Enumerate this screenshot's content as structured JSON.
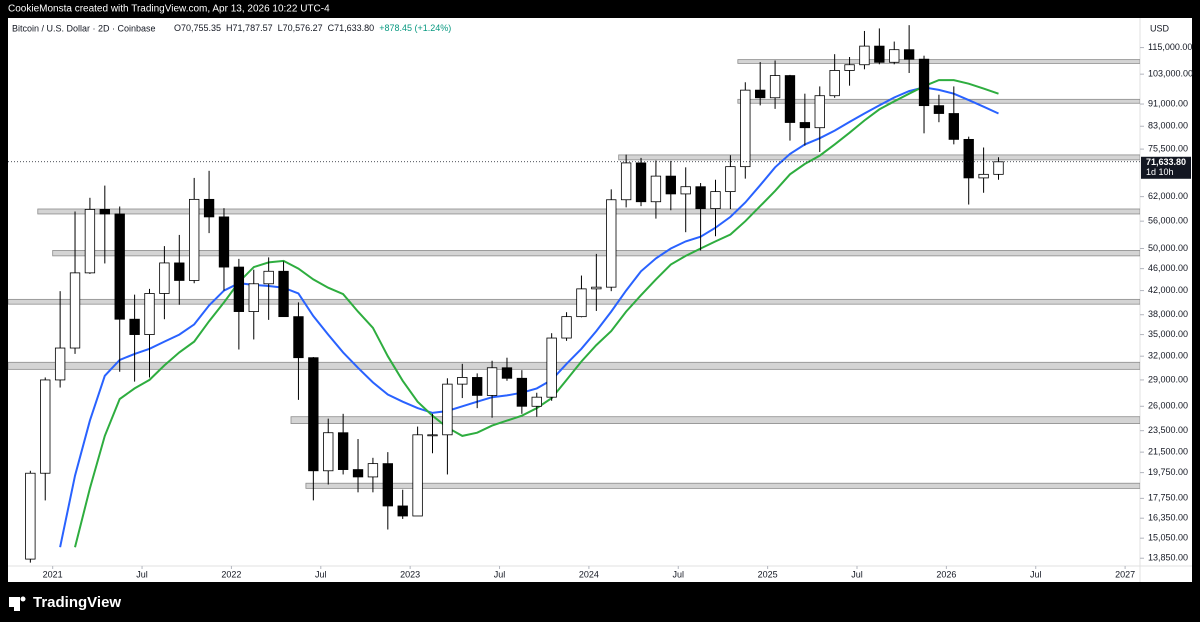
{
  "header": {
    "credit": "CookieMonsta created with TradingView.com, Apr 13, 2026 10:22 UTC-4",
    "symbol": "Bitcoin / U.S. Dollar · 2D · Coinbase",
    "ohlc": [
      "O70,755.35",
      "H71,787.57",
      "L70,576.27",
      "C71,633.80",
      "+878.45 (+1.24%)"
    ]
  },
  "footer": {
    "brand": "TradingView"
  },
  "chart_data": {
    "type": "candlestick",
    "currency": "USD",
    "log_scale": true,
    "up_color": "#ffffff",
    "down_color": "#000000",
    "wick_color": "#000000",
    "x": [
      "2020-11",
      "2020-12",
      "2021-01",
      "2021-02",
      "2021-03",
      "2021-04",
      "2021-05",
      "2021-06",
      "2021-07",
      "2021-08",
      "2021-09",
      "2021-10",
      "2021-11",
      "2021-12",
      "2022-01",
      "2022-02",
      "2022-03",
      "2022-04",
      "2022-05",
      "2022-06",
      "2022-07",
      "2022-08",
      "2022-09",
      "2022-10",
      "2022-11",
      "2022-12",
      "2023-01",
      "2023-02",
      "2023-03",
      "2023-04",
      "2023-05",
      "2023-06",
      "2023-07",
      "2023-08",
      "2023-09",
      "2023-10",
      "2023-11",
      "2023-12",
      "2024-01",
      "2024-02",
      "2024-03",
      "2024-04",
      "2024-05",
      "2024-06",
      "2024-07",
      "2024-08",
      "2024-09",
      "2024-10",
      "2024-11",
      "2024-12",
      "2025-01",
      "2025-02",
      "2025-03",
      "2025-04",
      "2025-05",
      "2025-06",
      "2025-07",
      "2025-08",
      "2025-09",
      "2025-10",
      "2025-11",
      "2025-12",
      "2026-01",
      "2026-02",
      "2026-03",
      "2026-04"
    ],
    "open": [
      13800,
      19700,
      29000,
      33100,
      45200,
      58800,
      57700,
      37300,
      35000,
      41500,
      47100,
      43800,
      61300,
      57000,
      46300,
      38500,
      43200,
      45500,
      37700,
      31800,
      19900,
      23300,
      20000,
      19400,
      20500,
      17200,
      16500,
      23100,
      23100,
      28500,
      29300,
      27200,
      30500,
      29200,
      26000,
      27000,
      34500,
      37700,
      42300,
      42600,
      61200,
      71300,
      60700,
      67500,
      62700,
      64600,
      59000,
      63300,
      70200,
      96400,
      93400,
      102400,
      84300,
      82500,
      94200,
      104600,
      107100,
      115700,
      108200,
      114000,
      109600,
      90400,
      87500,
      78600,
      67000,
      68000
    ],
    "high": [
      19900,
      29300,
      41900,
      58300,
      61700,
      64900,
      59500,
      41300,
      42300,
      50500,
      52900,
      67000,
      69000,
      59100,
      47900,
      45800,
      48200,
      47400,
      40000,
      31900,
      24700,
      25200,
      22700,
      21000,
      21500,
      18400,
      23900,
      25200,
      29200,
      31000,
      29800,
      31400,
      31800,
      30200,
      27500,
      35200,
      38400,
      44700,
      48900,
      63900,
      73800,
      72800,
      72000,
      71900,
      70000,
      65600,
      66500,
      73600,
      99600,
      108300,
      109000,
      102700,
      95000,
      97900,
      111900,
      110600,
      123200,
      124500,
      117900,
      126200,
      111200,
      94600,
      97900,
      79500,
      76000,
      73000
    ],
    "low": [
      13600,
      17600,
      28100,
      32300,
      45000,
      47000,
      30000,
      28800,
      29300,
      37300,
      39600,
      43300,
      53300,
      42000,
      32900,
      34300,
      37200,
      37700,
      26700,
      17600,
      18800,
      19600,
      18200,
      18200,
      15600,
      16300,
      16500,
      21400,
      19600,
      26900,
      25800,
      24800,
      28900,
      25200,
      24900,
      26600,
      34100,
      37600,
      38600,
      41900,
      59300,
      59600,
      56600,
      58600,
      53500,
      49600,
      52600,
      58900,
      66800,
      90500,
      89200,
      78200,
      76600,
      74600,
      93400,
      98200,
      105100,
      107300,
      107300,
      103500,
      80600,
      84400,
      77000,
      60000,
      63000,
      66500
    ],
    "close": [
      19700,
      29000,
      33100,
      45200,
      58800,
      57700,
      37300,
      35000,
      41500,
      47100,
      43800,
      61300,
      57000,
      46300,
      38500,
      43200,
      45500,
      37700,
      31800,
      19900,
      23300,
      20000,
      19400,
      20500,
      17200,
      16500,
      23100,
      23100,
      28500,
      29300,
      27200,
      30500,
      29200,
      26000,
      27000,
      34500,
      37700,
      42300,
      42600,
      61200,
      71300,
      60700,
      67500,
      62700,
      64600,
      59000,
      63300,
      70200,
      96400,
      93400,
      102400,
      84300,
      82500,
      94200,
      104600,
      107100,
      115700,
      108200,
      114000,
      109600,
      90400,
      87500,
      78600,
      67000,
      68000,
      71634
    ],
    "lines": [
      {
        "color": "#2962ff",
        "values": [
          null,
          null,
          14500,
          19500,
          24500,
          29500,
          31500,
          32300,
          33000,
          34000,
          35000,
          36500,
          39500,
          42000,
          43300,
          43000,
          42800,
          42500,
          41500,
          37800,
          35000,
          32500,
          30500,
          28700,
          27300,
          26500,
          25800,
          25300,
          25500,
          26000,
          26500,
          27000,
          27200,
          27500,
          28000,
          29000,
          31000,
          33000,
          35500,
          38500,
          42000,
          45500,
          48000,
          50000,
          51500,
          52500,
          54500,
          57000,
          60500,
          65000,
          70000,
          74000,
          77000,
          79000,
          81500,
          84500,
          87500,
          90500,
          93500,
          96000,
          97500,
          96500,
          95000,
          92500,
          90000,
          87500
        ]
      },
      {
        "color": "#2ead3f",
        "values": [
          null,
          null,
          null,
          14500,
          18500,
          23000,
          26800,
          28000,
          29000,
          30800,
          32500,
          34000,
          37000,
          40000,
          43500,
          46300,
          47200,
          47500,
          46000,
          44000,
          42500,
          41400,
          38500,
          36000,
          32000,
          28900,
          26500,
          25000,
          23800,
          23000,
          23300,
          24000,
          24500,
          25000,
          25800,
          26900,
          29000,
          31300,
          33500,
          35500,
          38500,
          41200,
          44000,
          46800,
          48500,
          50000,
          51500,
          53000,
          56000,
          59600,
          63500,
          68000,
          71000,
          73500,
          77000,
          80800,
          85000,
          89000,
          92000,
          95000,
          98000,
          100500,
          100500,
          99000,
          97000,
          95000
        ]
      }
    ],
    "levels": [
      {
        "start": "2024-11",
        "low": 107700,
        "high": 109400
      },
      {
        "start": "2024-11",
        "low": 91300,
        "high": 92800
      },
      {
        "start": "2024-03",
        "low": 72200,
        "high": 73700
      },
      {
        "start": "2020-12",
        "low": 57700,
        "high": 58900
      },
      {
        "start": "2021-01",
        "low": 48500,
        "high": 49600
      },
      {
        "start": "2020-10",
        "low": 39700,
        "high": 40500
      },
      {
        "start": "2020-10",
        "low": 30300,
        "high": 31200
      },
      {
        "start": "2022-05",
        "low": 24200,
        "high": 24900
      },
      {
        "start": "2022-06",
        "low": 18500,
        "high": 18900
      }
    ],
    "level_color": "#d4d4d4",
    "last_price": {
      "value": 71633.8,
      "label": "71,633.80"
    },
    "countdown": "1d 10h",
    "xlim": [
      "2020-10",
      "2027-02"
    ],
    "xticks": [
      {
        "value": "2021-01",
        "label": "2021"
      },
      {
        "value": "2021-07",
        "label": "Jul"
      },
      {
        "value": "2022-01",
        "label": "2022"
      },
      {
        "value": "2022-07",
        "label": "Jul"
      },
      {
        "value": "2023-01",
        "label": "2023"
      },
      {
        "value": "2023-07",
        "label": "Jul"
      },
      {
        "value": "2024-01",
        "label": "2024"
      },
      {
        "value": "2024-07",
        "label": "Jul"
      },
      {
        "value": "2025-01",
        "label": "2025"
      },
      {
        "value": "2025-07",
        "label": "Jul"
      },
      {
        "value": "2026-01",
        "label": "2026"
      },
      {
        "value": "2026-07",
        "label": "Jul"
      },
      {
        "value": "2027-01",
        "label": "2027"
      }
    ],
    "ylim": [
      13300,
      130000
    ],
    "yticks": [
      {
        "value": 115000,
        "label": "115,000.00"
      },
      {
        "value": 103000,
        "label": "103,000.00"
      },
      {
        "value": 91000,
        "label": "91,000.00"
      },
      {
        "value": 83000,
        "label": "83,000.00"
      },
      {
        "value": 75500,
        "label": "75,500.00"
      },
      {
        "value": 62000,
        "label": "62,000.00"
      },
      {
        "value": 56000,
        "label": "56,000.00"
      },
      {
        "value": 50000,
        "label": "50,000.00"
      },
      {
        "value": 46000,
        "label": "46,000.00"
      },
      {
        "value": 42000,
        "label": "42,000.00"
      },
      {
        "value": 38000,
        "label": "38,000.00"
      },
      {
        "value": 35000,
        "label": "35,000.00"
      },
      {
        "value": 32000,
        "label": "32,000.00"
      },
      {
        "value": 29000,
        "label": "29,000.00"
      },
      {
        "value": 26000,
        "label": "26,000.00"
      },
      {
        "value": 23500,
        "label": "23,500.00"
      },
      {
        "value": 21500,
        "label": "21,500.00"
      },
      {
        "value": 19750,
        "label": "19,750.00"
      },
      {
        "value": 17750,
        "label": "17,750.00"
      },
      {
        "value": 16350,
        "label": "16,350.00"
      },
      {
        "value": 15050,
        "label": "15,050.00"
      },
      {
        "value": 13850,
        "label": "13,850.00"
      }
    ]
  }
}
